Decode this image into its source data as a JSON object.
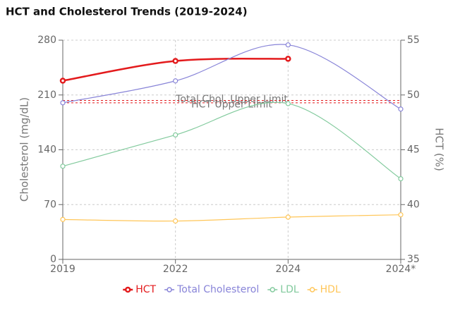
{
  "chart_data": {
    "type": "line",
    "title": "HCT and Cholesterol Trends (2019-2024)",
    "y_label": "Cholesterol (mg/dL)",
    "y2_label": "HCT (%)",
    "categories": [
      "2019",
      "2022",
      "2024",
      "2024*"
    ],
    "ylim": [
      0,
      280
    ],
    "yticks": [
      0,
      70,
      140,
      210,
      280
    ],
    "y2lim": [
      35,
      55
    ],
    "y2ticks": [
      35,
      40,
      45,
      50,
      55
    ],
    "grid": true,
    "legend": "bottom",
    "series": [
      {
        "name": "HCT",
        "color": "#e31a1c",
        "axis": "y2",
        "values": [
          51.3,
          53.1,
          53.3,
          null
        ]
      },
      {
        "name": "Total Cholesterol",
        "color": "#8884d8",
        "values": [
          200,
          228,
          274,
          192
        ]
      },
      {
        "name": "LDL",
        "color": "#82ca9d",
        "values": [
          119,
          159,
          199,
          103
        ]
      },
      {
        "name": "HDL",
        "color": "#ffc658",
        "values": [
          51,
          49,
          54,
          57
        ]
      }
    ],
    "reference_lines": [
      {
        "label": "Total Chol. Upper Limit",
        "value": 200,
        "color": "#e31a1c"
      },
      {
        "label": "HCT Upper Limit",
        "value": 49.5,
        "axis": "y2",
        "color": "#e31a1c"
      }
    ]
  }
}
